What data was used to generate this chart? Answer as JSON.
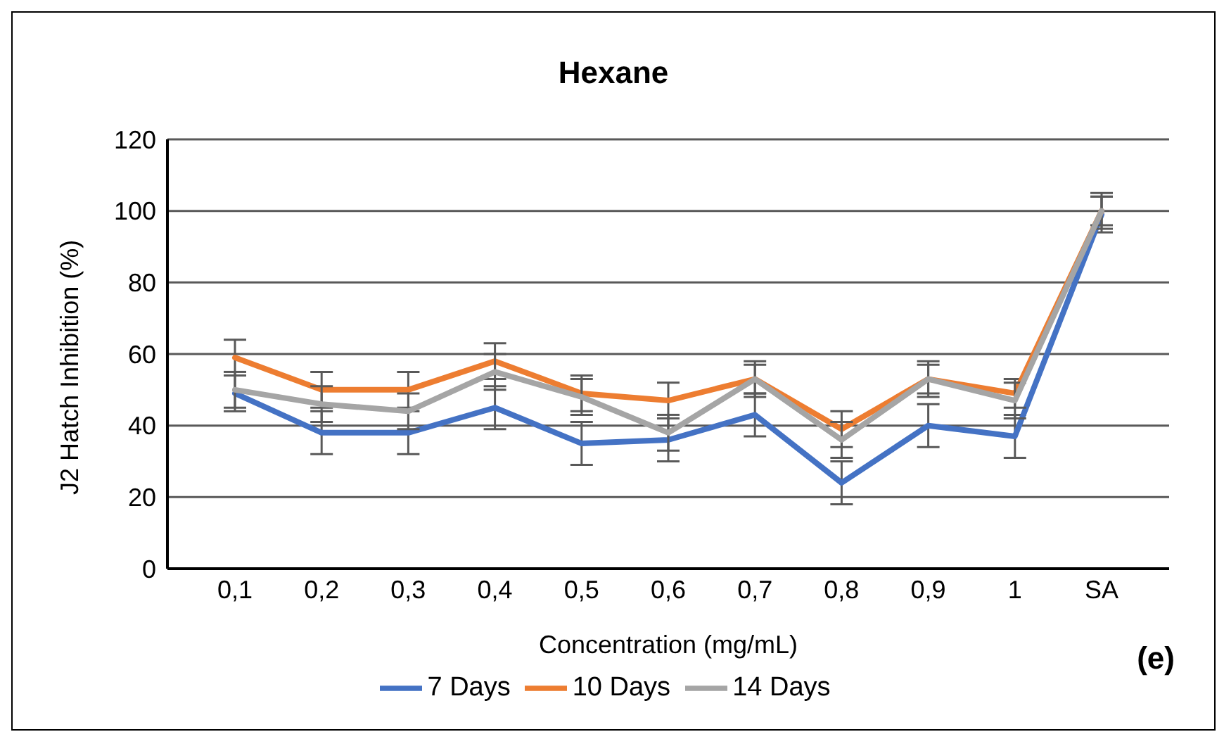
{
  "chart_data": {
    "type": "line",
    "title": "Hexane",
    "xlabel": "Concentration (mg/mL)",
    "ylabel": "J2 Hatch Inhibition (%)",
    "categories": [
      "0,1",
      "0,2",
      "0,3",
      "0,4",
      "0,5",
      "0,6",
      "0,7",
      "0,8",
      "0,9",
      "1",
      "SA"
    ],
    "series": [
      {
        "name": "7 Days",
        "color": "#4472c4",
        "values": [
          49,
          38,
          38,
          45,
          35,
          36,
          43,
          24,
          40,
          37,
          99
        ],
        "errors": [
          5,
          6,
          6,
          6,
          6,
          6,
          6,
          6,
          6,
          6,
          5
        ]
      },
      {
        "name": "10 Days",
        "color": "#ed7d31",
        "values": [
          59,
          50,
          50,
          58,
          49,
          47,
          53,
          39,
          53,
          49,
          100
        ],
        "errors": [
          5,
          5,
          5,
          5,
          5,
          5,
          5,
          5,
          5,
          4,
          5
        ]
      },
      {
        "name": "14 Days",
        "color": "#a5a5a5",
        "values": [
          50,
          46,
          44,
          55,
          48,
          38,
          53,
          36,
          53,
          47,
          100
        ],
        "errors": [
          5,
          5,
          5,
          5,
          5,
          5,
          4,
          5,
          4,
          5,
          4
        ]
      }
    ],
    "ylim": [
      0,
      120
    ],
    "yticks": [
      0,
      20,
      40,
      60,
      80,
      100,
      120
    ],
    "grid": "y",
    "legend": "bottom",
    "marker": "none",
    "line_style": "solid",
    "annotations": [
      "(e)"
    ]
  }
}
